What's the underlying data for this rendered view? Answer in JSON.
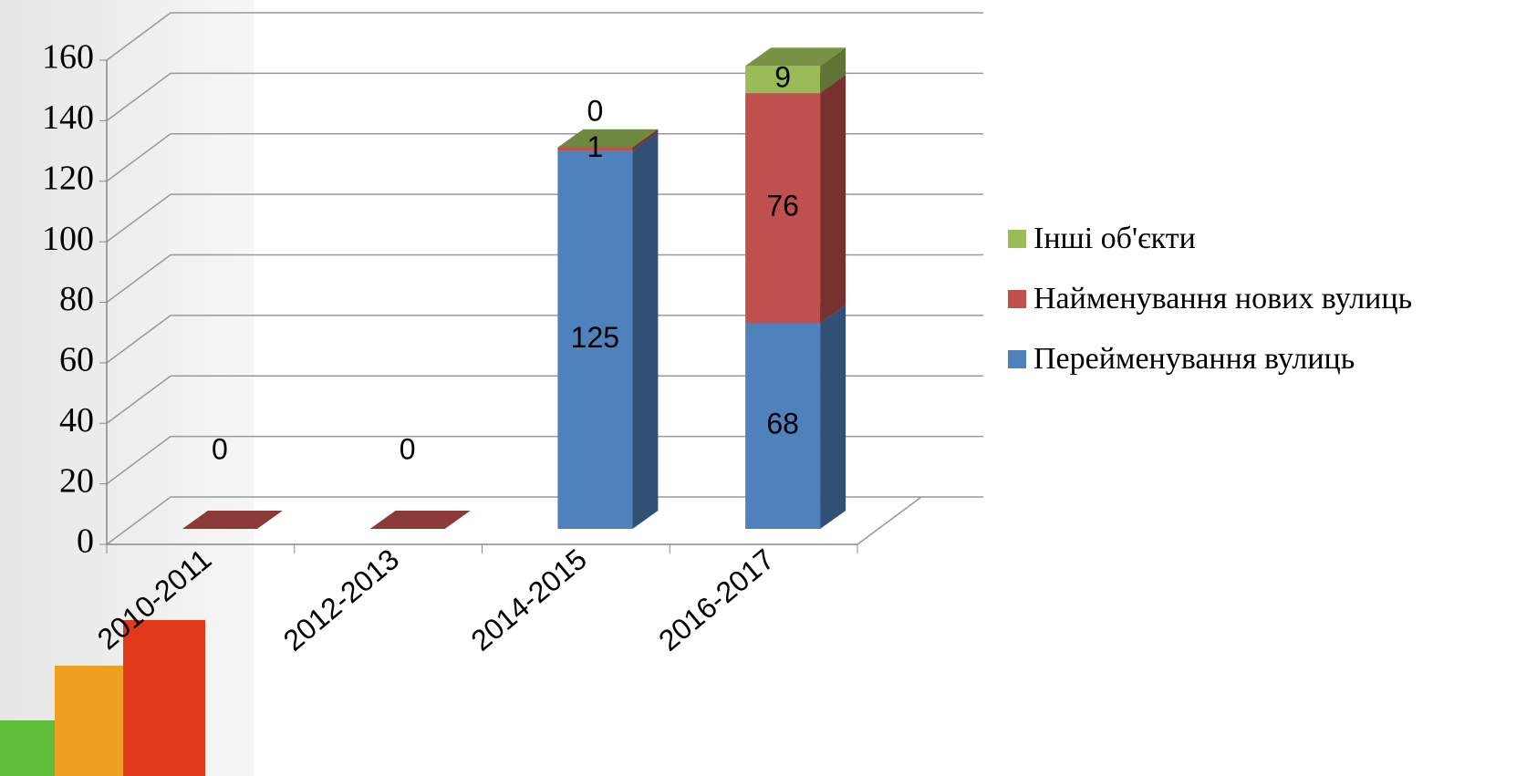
{
  "chart_data": {
    "type": "bar",
    "stacked": true,
    "categories": [
      "2010-2011",
      "2012-2013",
      "2014-2015",
      "2016-2017"
    ],
    "series": [
      {
        "name": "Перейменування вулиць",
        "color": "#4f81bd",
        "values": [
          null,
          null,
          125,
          68
        ]
      },
      {
        "name": "Найменування нових вулиць",
        "color": "#c0504d",
        "values": [
          0,
          0,
          1,
          76
        ]
      },
      {
        "name": "Інші об'єкти",
        "color": "#9bbb59",
        "values": [
          null,
          null,
          0,
          9
        ]
      }
    ],
    "ylim": [
      0,
      160
    ],
    "yticks": [
      0,
      20,
      40,
      60,
      80,
      100,
      120,
      140,
      160
    ],
    "grid": true,
    "legend": "right"
  }
}
